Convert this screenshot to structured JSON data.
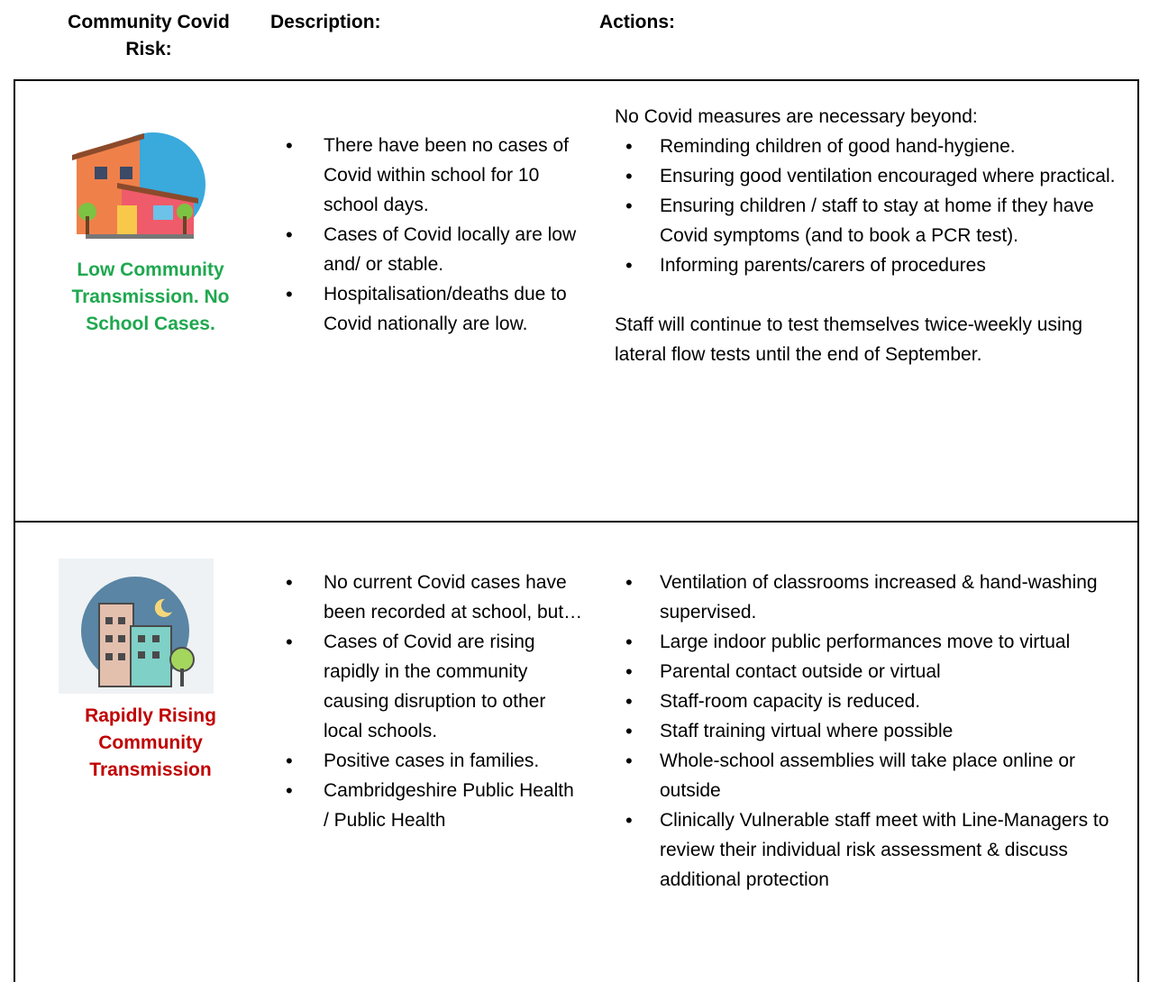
{
  "header": {
    "columns": [
      "Community Covid Risk:",
      "Description:",
      "Actions:"
    ]
  },
  "rows": [
    {
      "level": "Low Community Transmission. No School Cases.",
      "description": [
        "There have been no cases of Covid within school for 10 school days.",
        "Cases of Covid locally are low and/ or stable.",
        "Hospitalisation/deaths due to Covid nationally are low."
      ],
      "actions_intro": "No Covid measures are necessary beyond:",
      "actions": [
        "Reminding children of good hand-hygiene.",
        "Ensuring good ventilation encouraged where practical.",
        "Ensuring children / staff to stay at home if they have Covid symptoms (and to book a PCR test).",
        "Informing parents/carers of procedures"
      ],
      "actions_note": "Staff will continue to test themselves twice-weekly using lateral flow tests until the end of September."
    },
    {
      "level": "Rapidly Rising Community Transmission",
      "description": [
        "No current Covid cases have been recorded at school, but…",
        "Cases of Covid are rising rapidly in the community causing disruption to other local schools.",
        "Positive cases in families.",
        "Cambridgeshire Public Health / Public Health"
      ],
      "actions": [
        "Ventilation of classrooms increased & hand-washing supervised.",
        "Large indoor public performances move to virtual",
        "Parental contact outside or virtual",
        "Staff-room capacity is reduced.",
        "Staff training virtual where possible",
        "Whole-school assemblies will take place online or outside",
        "Clinically Vulnerable staff meet with Line-Managers to review their individual risk assessment & discuss additional protection"
      ]
    }
  ]
}
